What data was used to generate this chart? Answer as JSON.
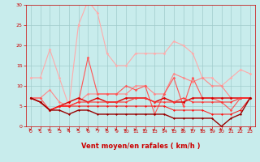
{
  "x": [
    0,
    1,
    2,
    3,
    4,
    5,
    6,
    7,
    8,
    9,
    10,
    11,
    12,
    13,
    14,
    15,
    16,
    17,
    18,
    19,
    20,
    21,
    22,
    23
  ],
  "series": [
    {
      "color": "#FFAAAA",
      "values": [
        12,
        12,
        19,
        12,
        5,
        25,
        31,
        28,
        18,
        15,
        15,
        18,
        18,
        18,
        18,
        21,
        20,
        18,
        12,
        12,
        10,
        12,
        14,
        13
      ],
      "lw": 0.8,
      "marker": "D",
      "ms": 1.8
    },
    {
      "color": "#FF8888",
      "values": [
        7,
        7,
        9,
        6,
        5,
        6,
        8,
        8,
        8,
        8,
        8,
        10,
        10,
        8,
        8,
        13,
        12,
        11,
        12,
        10,
        10,
        7,
        7,
        7
      ],
      "lw": 0.8,
      "marker": "D",
      "ms": 1.8
    },
    {
      "color": "#FF5555",
      "values": [
        7,
        7,
        4,
        5,
        5,
        6,
        17,
        8,
        8,
        8,
        10,
        9,
        10,
        3,
        8,
        12,
        5,
        12,
        7,
        7,
        6,
        4,
        7,
        7
      ],
      "lw": 0.8,
      "marker": "D",
      "ms": 1.8
    },
    {
      "color": "#DD0000",
      "values": [
        7,
        6,
        4,
        5,
        6,
        7,
        6,
        7,
        6,
        6,
        7,
        7,
        7,
        6,
        7,
        6,
        6,
        7,
        7,
        7,
        7,
        7,
        7,
        7
      ],
      "lw": 1.0,
      "marker": "D",
      "ms": 1.8
    },
    {
      "color": "#FF3333",
      "values": [
        7,
        6,
        4,
        5,
        5,
        6,
        6,
        6,
        6,
        6,
        6,
        7,
        7,
        6,
        6,
        6,
        7,
        6,
        6,
        6,
        6,
        6,
        7,
        7
      ],
      "lw": 0.8,
      "marker": "D",
      "ms": 1.5
    },
    {
      "color": "#FF1111",
      "values": [
        7,
        6,
        4,
        5,
        5,
        5,
        5,
        5,
        5,
        5,
        5,
        5,
        5,
        5,
        5,
        4,
        4,
        4,
        4,
        3,
        3,
        3,
        4,
        7
      ],
      "lw": 0.7,
      "marker": "D",
      "ms": 1.5
    },
    {
      "color": "#990000",
      "values": [
        7,
        6,
        4,
        4,
        3,
        4,
        4,
        3,
        3,
        3,
        3,
        3,
        3,
        3,
        3,
        2,
        2,
        2,
        2,
        2,
        0,
        2,
        3,
        7
      ],
      "lw": 1.0,
      "marker": "D",
      "ms": 1.5
    }
  ],
  "xlabel": "Vent moyen/en rafales ( km/h )",
  "ylim": [
    0,
    30
  ],
  "xlim": [
    -0.5,
    23.5
  ],
  "yticks": [
    0,
    5,
    10,
    15,
    20,
    25,
    30
  ],
  "xticks": [
    0,
    1,
    2,
    3,
    4,
    5,
    6,
    7,
    8,
    9,
    10,
    11,
    12,
    13,
    14,
    15,
    16,
    17,
    18,
    19,
    20,
    21,
    22,
    23
  ],
  "bg_color": "#C8ECEC",
  "grid_color": "#A0CCCC",
  "tick_color": "#CC0000",
  "label_color": "#CC0000",
  "arrow_color": "#CC0000"
}
